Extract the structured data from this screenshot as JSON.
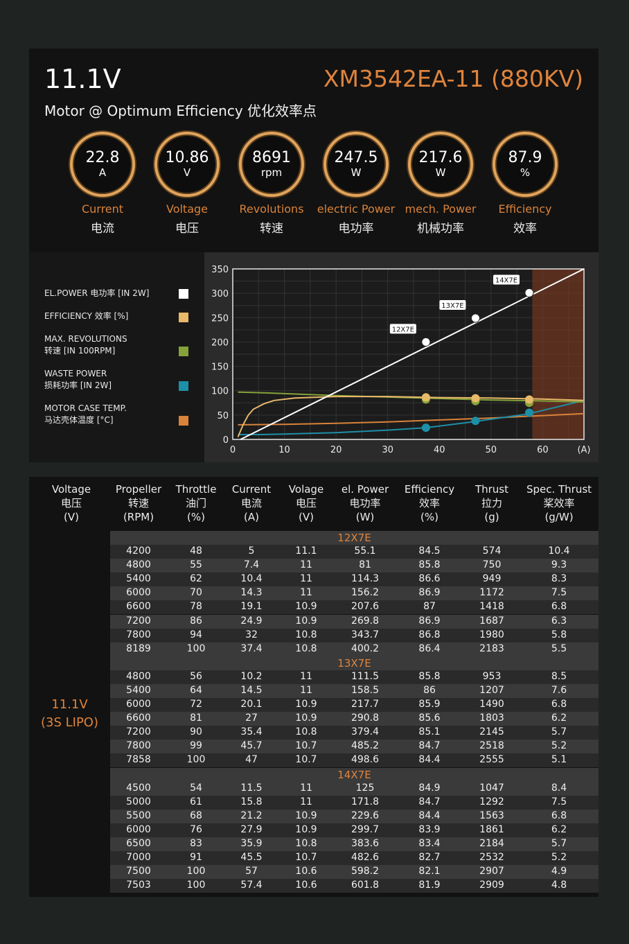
{
  "header": {
    "voltage": "11.1V",
    "model": "XM3542EA-11 (880KV)",
    "subtitle": "Motor @ Optimum Efficiency  优化效率点"
  },
  "gauges": [
    {
      "value": "22.8",
      "unit": "A",
      "en": "Current",
      "cn": "电流"
    },
    {
      "value": "10.86",
      "unit": "V",
      "en": "Voltage",
      "cn": "电压"
    },
    {
      "value": "8691",
      "unit": "rpm",
      "en": "Revolutions",
      "cn": "转速"
    },
    {
      "value": "247.5",
      "unit": "W",
      "en": "electric Power",
      "cn": "电功率"
    },
    {
      "value": "217.6",
      "unit": "W",
      "en": "mech. Power",
      "cn": "机械功率"
    },
    {
      "value": "87.9",
      "unit": "%",
      "en": "Efficiency",
      "cn": "效率"
    }
  ],
  "legend": [
    {
      "l1": "EL.POWER 电功率 [IN 2W]",
      "l2": "",
      "color": "#ffffff"
    },
    {
      "l1": "EFFICIENCY 效率 [%]",
      "l2": "",
      "color": "#e8b96a"
    },
    {
      "l1": "MAX. REVOLUTIONS",
      "l2": "转速 [IN 100RPM]",
      "color": "#86a33a"
    },
    {
      "l1": "WASTE POWER",
      "l2": "损耗功率 [IN 2W]",
      "color": "#1e8fa8"
    },
    {
      "l1": "MOTOR CASE TEMP.",
      "l2": "马达壳体温度 [°C]",
      "color": "#d9833a"
    }
  ],
  "chart_data": {
    "type": "line",
    "xlabel": "(A)",
    "xlim": [
      0,
      68
    ],
    "ylim": [
      0,
      350
    ],
    "xticks": [
      "0",
      "10",
      "20",
      "30",
      "40",
      "50",
      "60",
      "(A)"
    ],
    "yticks": [
      "0",
      "50",
      "100",
      "150",
      "200",
      "250",
      "300",
      "350"
    ],
    "shaded_region_x": [
      58,
      68
    ],
    "series": [
      {
        "name": "EL.POWER 电功率 [IN 2W]",
        "color": "#ffffff",
        "x": [
          1.5,
          68
        ],
        "y": [
          0,
          350
        ]
      },
      {
        "name": "EFFICIENCY 效率 [%]",
        "color": "#e8b96a",
        "x": [
          1,
          2,
          3,
          4,
          6,
          8,
          12,
          20,
          30,
          40,
          50,
          60,
          68
        ],
        "y": [
          5,
          30,
          50,
          62,
          73,
          80,
          85,
          88,
          88,
          86,
          85,
          83,
          80
        ]
      },
      {
        "name": "MAX. REVOLUTIONS 转速 [IN 100RPM]",
        "color": "#86a33a",
        "x": [
          1,
          5,
          10,
          20,
          30,
          40,
          50,
          60,
          68
        ],
        "y": [
          97,
          96,
          94,
          90,
          87,
          84,
          81,
          79,
          77
        ]
      },
      {
        "name": "WASTE POWER 损耗功率 [IN 2W]",
        "color": "#1e8fa8",
        "x": [
          1,
          5,
          10,
          20,
          30,
          37.4,
          45.7,
          57,
          68
        ],
        "y": [
          10,
          10,
          11,
          14,
          19,
          24,
          35,
          52,
          80
        ]
      },
      {
        "name": "MOTOR CASE TEMP. 马达壳体温度 [°C]",
        "color": "#d9833a",
        "x": [
          1,
          10,
          20,
          30,
          40,
          50,
          60,
          68
        ],
        "y": [
          30,
          31,
          33,
          36,
          40,
          44,
          49,
          53
        ]
      }
    ],
    "markers": [
      {
        "label": "12X7E",
        "x": 37.4,
        "power": 200,
        "efficiency": 86.4,
        "revs": 81.9,
        "waste": 24
      },
      {
        "label": "13X7E",
        "x": 47,
        "power": 249,
        "efficiency": 84.4,
        "revs": 78.6,
        "waste": 38
      },
      {
        "label": "14X7E",
        "x": 57.4,
        "power": 301,
        "efficiency": 81.9,
        "revs": 75,
        "waste": 55
      }
    ]
  },
  "table": {
    "headers": [
      [
        "Voltage",
        "电压",
        "(V)"
      ],
      [
        "Propeller",
        "转速",
        "(RPM)"
      ],
      [
        "Throttle",
        "油门",
        "(%)"
      ],
      [
        "Current",
        "电流",
        "(A)"
      ],
      [
        "Volage",
        "电压",
        "(V)"
      ],
      [
        "el. Power",
        "电功率",
        "(W)"
      ],
      [
        "Efficiency",
        "效率",
        "(%)"
      ],
      [
        "Thrust",
        "拉力",
        "(g)"
      ],
      [
        "Spec. Thrust",
        "桨效率",
        "(g/W)"
      ]
    ],
    "voltage_cell": [
      "11.1V",
      "(3S LIPO)"
    ],
    "groups": [
      {
        "name": "12X7E",
        "rows": [
          [
            "4200",
            "48",
            "5",
            "11.1",
            "55.1",
            "84.5",
            "574",
            "10.4"
          ],
          [
            "4800",
            "55",
            "7.4",
            "11",
            "81",
            "85.8",
            "750",
            "9.3"
          ],
          [
            "5400",
            "62",
            "10.4",
            "11",
            "114.3",
            "86.6",
            "949",
            "8.3"
          ],
          [
            "6000",
            "70",
            "14.3",
            "11",
            "156.2",
            "86.9",
            "1172",
            "7.5"
          ],
          [
            "6600",
            "78",
            "19.1",
            "10.9",
            "207.6",
            "87",
            "1418",
            "6.8"
          ],
          [
            "7200",
            "86",
            "24.9",
            "10.9",
            "269.8",
            "86.9",
            "1687",
            "6.3"
          ],
          [
            "7800",
            "94",
            "32",
            "10.8",
            "343.7",
            "86.8",
            "1980",
            "5.8"
          ],
          [
            "8189",
            "100",
            "37.4",
            "10.8",
            "400.2",
            "86.4",
            "2183",
            "5.5"
          ]
        ]
      },
      {
        "name": "13X7E",
        "rows": [
          [
            "4800",
            "56",
            "10.2",
            "11",
            "111.5",
            "85.8",
            "953",
            "8.5"
          ],
          [
            "5400",
            "64",
            "14.5",
            "11",
            "158.5",
            "86",
            "1207",
            "7.6"
          ],
          [
            "6000",
            "72",
            "20.1",
            "10.9",
            "217.7",
            "85.9",
            "1490",
            "6.8"
          ],
          [
            "6600",
            "81",
            "27",
            "10.9",
            "290.8",
            "85.6",
            "1803",
            "6.2"
          ],
          [
            "7200",
            "90",
            "35.4",
            "10.8",
            "379.4",
            "85.1",
            "2145",
            "5.7"
          ],
          [
            "7800",
            "99",
            "45.7",
            "10.7",
            "485.2",
            "84.7",
            "2518",
            "5.2"
          ],
          [
            "7858",
            "100",
            "47",
            "10.7",
            "498.6",
            "84.4",
            "2555",
            "5.1"
          ]
        ]
      },
      {
        "name": "14X7E",
        "rows": [
          [
            "4500",
            "54",
            "11.5",
            "11",
            "125",
            "84.9",
            "1047",
            "8.4"
          ],
          [
            "5000",
            "61",
            "15.8",
            "11",
            "171.8",
            "84.7",
            "1292",
            "7.5"
          ],
          [
            "5500",
            "68",
            "21.2",
            "10.9",
            "229.6",
            "84.4",
            "1563",
            "6.8"
          ],
          [
            "6000",
            "76",
            "27.9",
            "10.9",
            "299.7",
            "83.9",
            "1861",
            "6.2"
          ],
          [
            "6500",
            "83",
            "35.9",
            "10.8",
            "383.6",
            "83.4",
            "2184",
            "5.7"
          ],
          [
            "7000",
            "91",
            "45.5",
            "10.7",
            "482.6",
            "82.7",
            "2532",
            "5.2"
          ],
          [
            "7500",
            "100",
            "57",
            "10.6",
            "598.2",
            "82.1",
            "2907",
            "4.9"
          ],
          [
            "7503",
            "100",
            "57.4",
            "10.6",
            "601.8",
            "81.9",
            "2909",
            "4.8"
          ]
        ]
      }
    ]
  }
}
